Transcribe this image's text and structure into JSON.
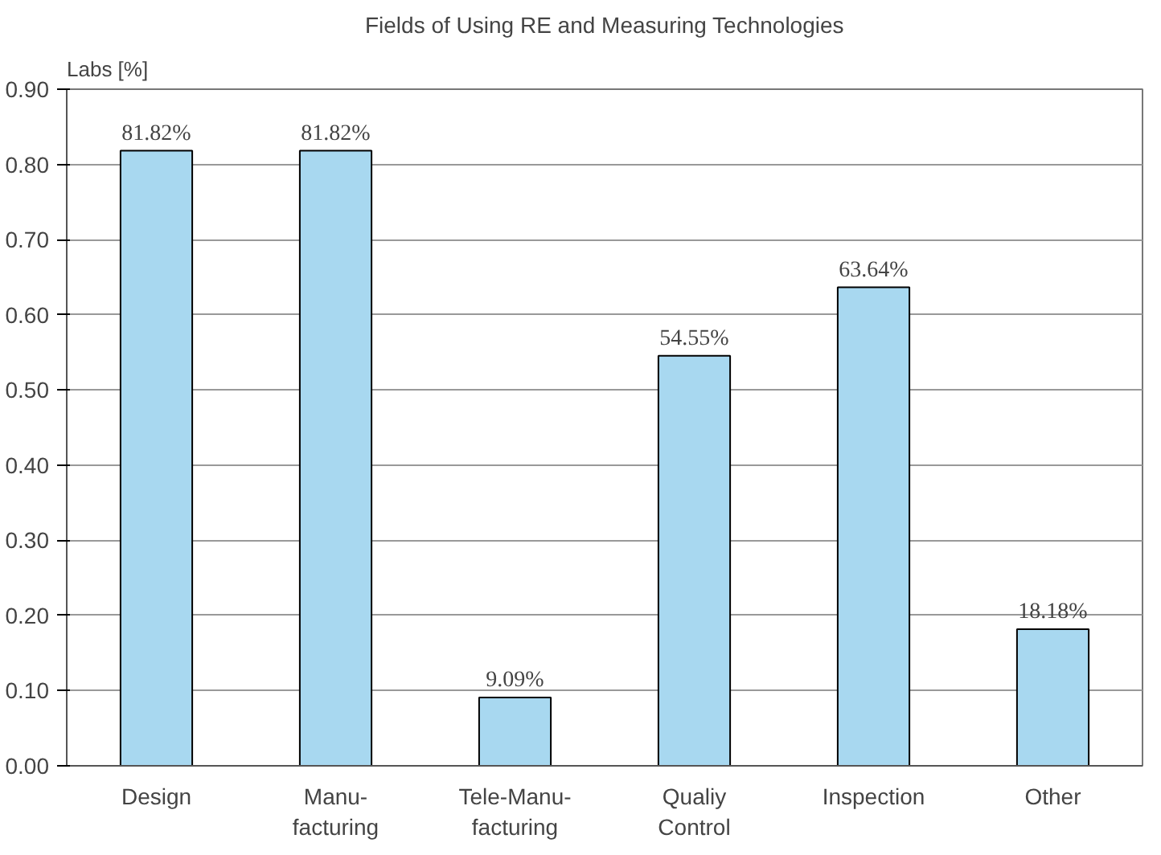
{
  "chart_data": {
    "type": "bar",
    "title": "Fields of Using RE and Measuring Technologies",
    "ylabel": "Labs [%]",
    "categories": [
      "Design",
      "Manu-\nfacturing",
      "Tele-Manu-\nfacturing",
      "Qualiy\nControl",
      "Inspection",
      "Other"
    ],
    "values": [
      0.8182,
      0.8182,
      0.0909,
      0.5455,
      0.6364,
      0.1818
    ],
    "value_labels": [
      "81.82%",
      "81.82%",
      "9.09%",
      "54.55%",
      "63.64%",
      "18.18%"
    ],
    "color": "#a8d8f0",
    "ylim": [
      0,
      0.9
    ],
    "yticks": [
      {
        "value": 0,
        "label": "0.00"
      },
      {
        "value": 0.1,
        "label": "0.10"
      },
      {
        "value": 0.2,
        "label": "0.20"
      },
      {
        "value": 0.3,
        "label": "0.30"
      },
      {
        "value": 0.4,
        "label": "0.40"
      },
      {
        "value": 0.5,
        "label": "0.50"
      },
      {
        "value": 0.6,
        "label": "0.60"
      },
      {
        "value": 0.7,
        "label": "0.70"
      },
      {
        "value": 0.8,
        "label": "0.80"
      },
      {
        "value": 0.9,
        "label": "0.90"
      }
    ],
    "grid": "y"
  }
}
